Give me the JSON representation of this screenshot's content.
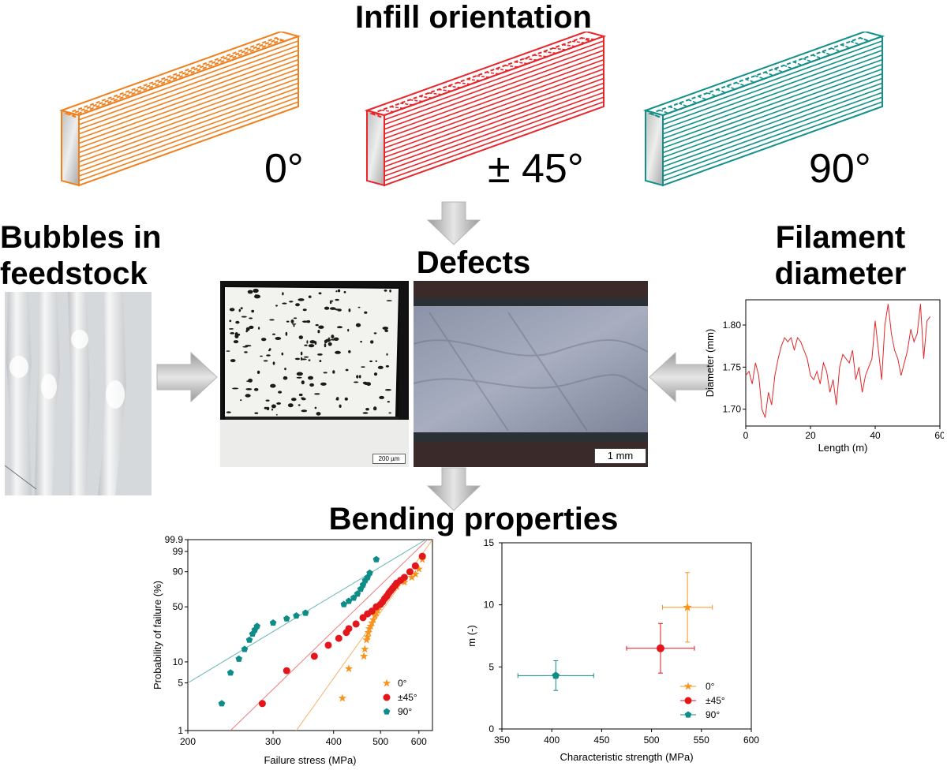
{
  "headings": {
    "infill": "Infill orientation",
    "bubbles": "Bubbles in\nfeedstock",
    "defects": "Defects",
    "filament": "Filament\ndiameter",
    "bending": "Bending properties"
  },
  "orientations": [
    {
      "label": "0°",
      "color": "#f0801e"
    },
    {
      "label": "± 45°",
      "color": "#e8262b"
    },
    {
      "label": "90°",
      "color": "#12908a"
    }
  ],
  "scale_bars": {
    "left": "200 µm",
    "right": "1 mm"
  },
  "filament_chart": {
    "type": "line",
    "xlabel": "Length (m)",
    "ylabel": "Diameter (mm)",
    "x_ticks": [
      "0",
      "20",
      "40",
      "60"
    ],
    "y_ticks": [
      "1.70",
      "1.75",
      "1.80"
    ],
    "xlim": [
      0,
      60
    ],
    "ylim": [
      1.68,
      1.83
    ],
    "color": "#e0282a",
    "x": [
      0,
      1,
      2,
      3,
      4,
      5,
      6,
      7,
      8,
      9,
      10,
      11,
      12,
      13,
      14,
      15,
      16,
      17,
      18,
      19,
      20,
      21,
      22,
      23,
      24,
      25,
      26,
      27,
      28,
      29,
      30,
      31,
      32,
      33,
      34,
      35,
      36,
      37,
      38,
      39,
      40,
      41,
      42,
      43,
      44,
      45,
      46,
      47,
      48,
      49,
      50,
      51,
      52,
      53,
      54,
      55,
      56,
      57
    ],
    "y": [
      1.74,
      1.745,
      1.73,
      1.755,
      1.74,
      1.7,
      1.69,
      1.72,
      1.705,
      1.74,
      1.76,
      1.775,
      1.785,
      1.78,
      1.785,
      1.77,
      1.785,
      1.78,
      1.77,
      1.76,
      1.74,
      1.735,
      1.745,
      1.73,
      1.755,
      1.745,
      1.72,
      1.735,
      1.705,
      1.75,
      1.765,
      1.76,
      1.755,
      1.77,
      1.735,
      1.75,
      1.72,
      1.74,
      1.75,
      1.76,
      1.805,
      1.77,
      1.735,
      1.8,
      1.825,
      1.79,
      1.77,
      1.76,
      1.74,
      1.755,
      1.77,
      1.795,
      1.78,
      1.79,
      1.825,
      1.76,
      1.805,
      1.81
    ]
  },
  "weibull_chart": {
    "type": "scatter",
    "xlabel": "Failure stress (MPa)",
    "ylabel": "Probability of failure (%)",
    "x_ticks": [
      "200",
      "300",
      "400",
      "500",
      "600"
    ],
    "y_ticks": [
      "1",
      "5",
      "10",
      "50",
      "90",
      "99",
      "99.9"
    ],
    "x_log": true,
    "xlim": [
      200,
      640
    ],
    "legend": [
      "0°",
      "±45°",
      "90°"
    ],
    "series": [
      {
        "name": "0°",
        "color": "#f7941d",
        "marker": "star",
        "x": [
          417,
          430,
          462,
          464,
          468,
          470,
          472,
          474,
          477,
          480,
          483,
          487,
          490,
          493,
          497,
          500,
          505,
          510,
          515,
          520,
          525,
          530,
          540,
          560,
          580,
          590,
          600,
          610
        ],
        "y": [
          3,
          8,
          12,
          15,
          20,
          22,
          25,
          28,
          30,
          33,
          36,
          40,
          43,
          46,
          50,
          53,
          57,
          60,
          63,
          66,
          70,
          73,
          75,
          80,
          85,
          88,
          92,
          97
        ]
      },
      {
        "name": "±45°",
        "color": "#e3161b",
        "marker": "circle",
        "x": [
          285,
          320,
          365,
          390,
          410,
          425,
          430,
          445,
          460,
          470,
          480,
          490,
          500,
          505,
          510,
          515,
          520,
          525,
          530,
          535,
          540,
          550,
          560,
          575,
          590,
          610
        ],
        "y": [
          2.5,
          7.5,
          12,
          17,
          21,
          25,
          28,
          32,
          38,
          42,
          45,
          50,
          53,
          56,
          60,
          63,
          67,
          70,
          73,
          76,
          79,
          82,
          85,
          90,
          94,
          98
        ]
      },
      {
        "name": "90°",
        "color": "#0e8c88",
        "marker": "pentagon",
        "x": [
          235,
          245,
          255,
          262,
          268,
          272,
          275,
          278,
          300,
          320,
          335,
          350,
          420,
          430,
          440,
          448,
          455,
          460,
          465,
          470,
          475,
          490
        ],
        "y": [
          2.5,
          7,
          11,
          15,
          20,
          24,
          27,
          30,
          33,
          37,
          40,
          43,
          53,
          57,
          61,
          66,
          72,
          77,
          82,
          85,
          89,
          97
        ]
      }
    ],
    "fit_lines": [
      {
        "name": "0°",
        "color": "#f2b36a",
        "x": [
          335,
          640
        ],
        "y": [
          1,
          99.9
        ]
      },
      {
        "name": "±45°",
        "color": "#ec7c7c",
        "x": [
          245,
          625
        ],
        "y": [
          1,
          99.9
        ]
      },
      {
        "name": "90°",
        "color": "#6fb9b5",
        "x": [
          200,
          620
        ],
        "y": [
          5,
          99.9
        ]
      }
    ]
  },
  "strength_chart": {
    "type": "scatter",
    "xlabel": "Characteristic strength (MPa)",
    "ylabel": "m (-)",
    "x_ticks": [
      "350",
      "400",
      "450",
      "500",
      "550",
      "600"
    ],
    "y_ticks": [
      "0",
      "5",
      "10",
      "15"
    ],
    "xlim": [
      350,
      600
    ],
    "ylim": [
      0,
      15
    ],
    "legend": [
      "0°",
      "±45°",
      "90°"
    ],
    "points": [
      {
        "name": "0°",
        "color": "#f7941d",
        "marker": "star",
        "x": 536,
        "y": 9.8,
        "xerr": 25,
        "yerr": 2.8
      },
      {
        "name": "±45°",
        "color": "#e3161b",
        "marker": "circle",
        "x": 509,
        "y": 6.5,
        "xerr": 34,
        "yerr": 2.0
      },
      {
        "name": "90°",
        "color": "#0e8c88",
        "marker": "pentagon",
        "x": 404,
        "y": 4.3,
        "xerr": 38,
        "yerr": 1.2
      }
    ]
  }
}
